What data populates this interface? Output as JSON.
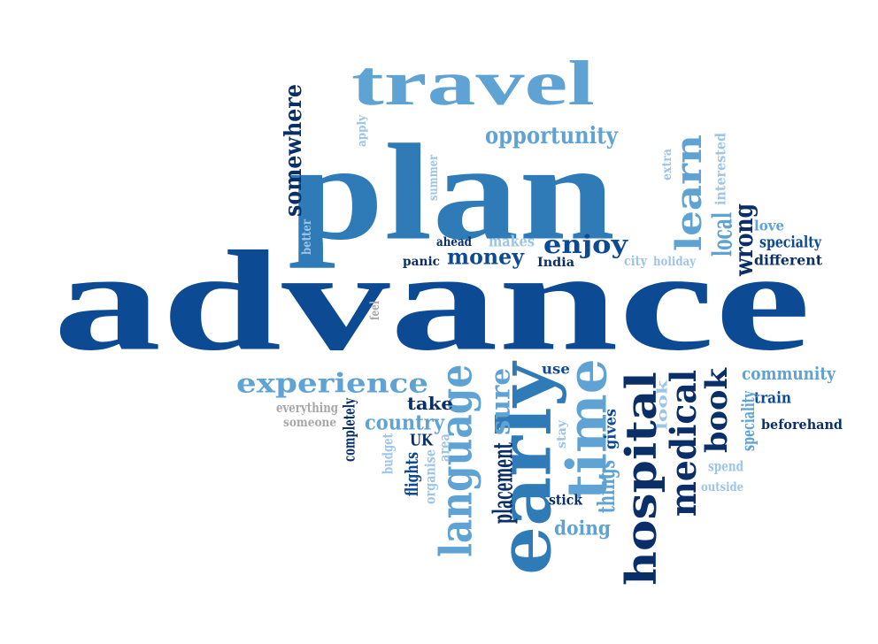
{
  "palette": {
    "dark": "#0d4a94",
    "navy": "#0a2f68",
    "mid": "#2e7bb8",
    "light": "#5ea3d4",
    "pale": "#9dc5e6",
    "grey": "#a8a8a8"
  },
  "words": [
    {
      "text": "advance",
      "tone": "dark",
      "vertical": false
    },
    {
      "text": "plan",
      "tone": "mid",
      "vertical": false
    },
    {
      "text": "travel",
      "tone": "light",
      "vertical": false
    },
    {
      "text": "opportunity",
      "tone": "light",
      "vertical": false
    },
    {
      "text": "somewhere",
      "tone": "navy",
      "vertical": true
    },
    {
      "text": "apply",
      "tone": "pale",
      "vertical": true
    },
    {
      "text": "better",
      "tone": "pale",
      "vertical": true
    },
    {
      "text": "summer",
      "tone": "pale",
      "vertical": true
    },
    {
      "text": "learn",
      "tone": "light",
      "vertical": true
    },
    {
      "text": "extra",
      "tone": "pale",
      "vertical": true
    },
    {
      "text": "interested",
      "tone": "pale",
      "vertical": true
    },
    {
      "text": "local",
      "tone": "light",
      "vertical": true
    },
    {
      "text": "wrong",
      "tone": "navy",
      "vertical": true
    },
    {
      "text": "love",
      "tone": "light",
      "vertical": false
    },
    {
      "text": "specialty",
      "tone": "dark",
      "vertical": false
    },
    {
      "text": "different",
      "tone": "navy",
      "vertical": false
    },
    {
      "text": "ahead",
      "tone": "navy",
      "vertical": false
    },
    {
      "text": "makes",
      "tone": "pale",
      "vertical": false
    },
    {
      "text": "enjoy",
      "tone": "dark",
      "vertical": false
    },
    {
      "text": "panic",
      "tone": "navy",
      "vertical": false
    },
    {
      "text": "money",
      "tone": "dark",
      "vertical": false
    },
    {
      "text": "India",
      "tone": "navy",
      "vertical": false
    },
    {
      "text": "city",
      "tone": "pale",
      "vertical": false
    },
    {
      "text": "holiday",
      "tone": "pale",
      "vertical": false
    },
    {
      "text": "feel",
      "tone": "grey",
      "vertical": true
    },
    {
      "text": "experience",
      "tone": "light",
      "vertical": false
    },
    {
      "text": "language",
      "tone": "light",
      "vertical": true
    },
    {
      "text": "early",
      "tone": "mid",
      "vertical": true
    },
    {
      "text": "sure",
      "tone": "light",
      "vertical": true
    },
    {
      "text": "use",
      "tone": "dark",
      "vertical": false
    },
    {
      "text": "time",
      "tone": "light",
      "vertical": true
    },
    {
      "text": "hospital",
      "tone": "navy",
      "vertical": true
    },
    {
      "text": "medical",
      "tone": "navy",
      "vertical": true
    },
    {
      "text": "book",
      "tone": "navy",
      "vertical": true
    },
    {
      "text": "community",
      "tone": "light",
      "vertical": false
    },
    {
      "text": "train",
      "tone": "dark",
      "vertical": false
    },
    {
      "text": "speciality",
      "tone": "light",
      "vertical": true
    },
    {
      "text": "beforehand",
      "tone": "navy",
      "vertical": false
    },
    {
      "text": "look",
      "tone": "pale",
      "vertical": true
    },
    {
      "text": "spend",
      "tone": "pale",
      "vertical": false
    },
    {
      "text": "outside",
      "tone": "pale",
      "vertical": false
    },
    {
      "text": "everything",
      "tone": "grey",
      "vertical": false
    },
    {
      "text": "someone",
      "tone": "grey",
      "vertical": false
    },
    {
      "text": "completely",
      "tone": "navy",
      "vertical": true
    },
    {
      "text": "take",
      "tone": "navy",
      "vertical": false
    },
    {
      "text": "country",
      "tone": "light",
      "vertical": false
    },
    {
      "text": "UK",
      "tone": "navy",
      "vertical": false
    },
    {
      "text": "budget",
      "tone": "pale",
      "vertical": true
    },
    {
      "text": "flights",
      "tone": "dark",
      "vertical": true
    },
    {
      "text": "organise",
      "tone": "pale",
      "vertical": true
    },
    {
      "text": "area",
      "tone": "pale",
      "vertical": true
    },
    {
      "text": "placement",
      "tone": "navy",
      "vertical": true
    },
    {
      "text": "stick",
      "tone": "navy",
      "vertical": false
    },
    {
      "text": "doing",
      "tone": "light",
      "vertical": false
    },
    {
      "text": "things",
      "tone": "light",
      "vertical": true
    },
    {
      "text": "gives",
      "tone": "dark",
      "vertical": true
    },
    {
      "text": "stay",
      "tone": "pale",
      "vertical": true
    }
  ]
}
